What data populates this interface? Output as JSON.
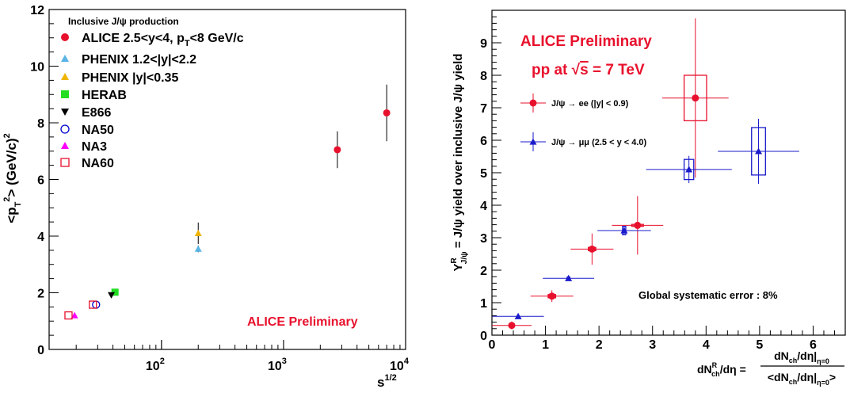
{
  "colors": {
    "alice": "#e8112d",
    "phenix_fwd": "#5ab4e6",
    "phenix_mid": "#f0b400",
    "herab": "#22dd22",
    "e866": "#000000",
    "na50": "#0000cc",
    "na3": "#ff00ff",
    "na60": "#e8112d",
    "ee": "#e8112d",
    "mumu": "#1a1acc"
  },
  "chart_data": [
    {
      "type": "scatter",
      "title": "",
      "legend_header": "Inclusive J/ψ production",
      "legend_placement": "top-left",
      "xlabel": "s^{1/2}",
      "ylabel": "<p_T^2> (GeV/c)^2",
      "xscale": "log",
      "xlim": [
        12,
        10000
      ],
      "ylim": [
        0,
        12
      ],
      "x_ticks": [
        {
          "v": 100,
          "label": "10",
          "exp": "2"
        },
        {
          "v": 1000,
          "label": "10",
          "exp": "3"
        },
        {
          "v": 10000,
          "label": "10",
          "exp": "4"
        }
      ],
      "y_ticks": [
        0,
        2,
        4,
        6,
        8,
        10,
        12
      ],
      "annotation": "ALICE Preliminary",
      "series": [
        {
          "name": "ALICE 2.5<y<4, p_T<8 GeV/c",
          "marker": "circle-filled",
          "color": "#e8112d",
          "points": [
            {
              "x": 2760,
              "y": 7.05,
              "err": 0.65
            },
            {
              "x": 7000,
              "y": 8.35,
              "err": 1.0
            }
          ]
        },
        {
          "name": "PHENIX 1.2<|y|<2.2",
          "marker": "triangle-up",
          "color": "#5ab4e6",
          "points": [
            {
              "x": 200,
              "y": 3.55,
              "err": 0.12
            }
          ]
        },
        {
          "name": "PHENIX |y|<0.35",
          "marker": "triangle-up",
          "color": "#f0b400",
          "points": [
            {
              "x": 200,
              "y": 4.1,
              "err": 0.38
            }
          ]
        },
        {
          "name": "HERAB",
          "marker": "square-filled",
          "color": "#22dd22",
          "points": [
            {
              "x": 41.6,
              "y": 2.02,
              "err": 0
            }
          ]
        },
        {
          "name": "E866",
          "marker": "triangle-down",
          "color": "#000000",
          "points": [
            {
              "x": 38.8,
              "y": 1.92,
              "err": 0
            }
          ]
        },
        {
          "name": "NA50",
          "marker": "circle-open",
          "color": "#0000cc",
          "points": [
            {
              "x": 29.1,
              "y": 1.58,
              "err": 0
            }
          ]
        },
        {
          "name": "NA3",
          "marker": "triangle-up",
          "color": "#ff00ff",
          "points": [
            {
              "x": 19.4,
              "y": 1.2,
              "err": 0
            }
          ]
        },
        {
          "name": "NA60",
          "marker": "square-open",
          "color": "#e8112d",
          "points": [
            {
              "x": 17.3,
              "y": 1.2,
              "err": 0
            },
            {
              "x": 27.4,
              "y": 1.58,
              "err": 0
            }
          ]
        }
      ]
    },
    {
      "type": "scatter",
      "title": "",
      "header_line1": "ALICE Preliminary",
      "header_line2_prefix": "pp at ",
      "header_line2_sqrt": "√",
      "header_line2_s": "s",
      "header_line2_suffix": " = 7 TeV",
      "legend_placement": "top-left",
      "xlabel_lhs": "dN_{ch}^{R}/dη =",
      "xlabel_num": "dN_ch/dη|_{η=0}",
      "xlabel_den": "<dN_ch/dη|_{η=0}>",
      "ylabel": "Y^R_{J/ψ} = J/ψ yield over inclusive J/ψ yield",
      "xlim": [
        0,
        6.6
      ],
      "ylim": [
        0,
        10
      ],
      "x_ticks": [
        0,
        1,
        2,
        3,
        4,
        5,
        6
      ],
      "y_ticks": [
        0,
        1,
        2,
        3,
        4,
        5,
        6,
        7,
        8,
        9
      ],
      "annotation": "Global systematic error : 8%",
      "series": [
        {
          "name": "J/ψ → ee (|y| < 0.9)",
          "marker": "circle-filled",
          "color": "#e8112d",
          "points": [
            {
              "x": 0.37,
              "y": 0.3,
              "xerr": 0.37,
              "yerr": 0.12,
              "bw": 0.08,
              "bh": 0.06
            },
            {
              "x": 1.12,
              "y": 1.2,
              "xerr": 0.4,
              "yerr": 0.18,
              "bw": 0.14,
              "bh": 0.1
            },
            {
              "x": 1.87,
              "y": 2.65,
              "xerr": 0.4,
              "yerr": 0.48,
              "bw": 0.14,
              "bh": 0.1
            },
            {
              "x": 2.72,
              "y": 3.38,
              "xerr": 0.48,
              "yerr": 0.9,
              "bw": 0.22,
              "bh": 0.06
            },
            {
              "x": 3.8,
              "y": 7.3,
              "xerr": 0.62,
              "yerr": 2.45,
              "bw": 0.42,
              "bh": 1.4
            }
          ]
        },
        {
          "name": "J/ψ → μμ (2.5 < y < 4.0)",
          "marker": "triangle-up",
          "color": "#1a1acc",
          "points": [
            {
              "x": 0.49,
              "y": 0.58,
              "xerr": 0.48,
              "yerr": 0.05,
              "bw": 0.0,
              "bh": 0.0
            },
            {
              "x": 1.43,
              "y": 1.75,
              "xerr": 0.48,
              "yerr": 0.05,
              "bw": 0.05,
              "bh": 0.08
            },
            {
              "x": 2.47,
              "y": 3.22,
              "xerr": 0.5,
              "yerr": 0.12,
              "bw": 0.06,
              "bh": 0.26
            },
            {
              "x": 3.68,
              "y": 5.1,
              "xerr": 0.8,
              "yerr": 0.42,
              "bw": 0.18,
              "bh": 0.62
            },
            {
              "x": 4.98,
              "y": 5.66,
              "xerr": 0.76,
              "yerr": 1.0,
              "bw": 0.26,
              "bh": 1.46
            }
          ]
        }
      ]
    }
  ]
}
